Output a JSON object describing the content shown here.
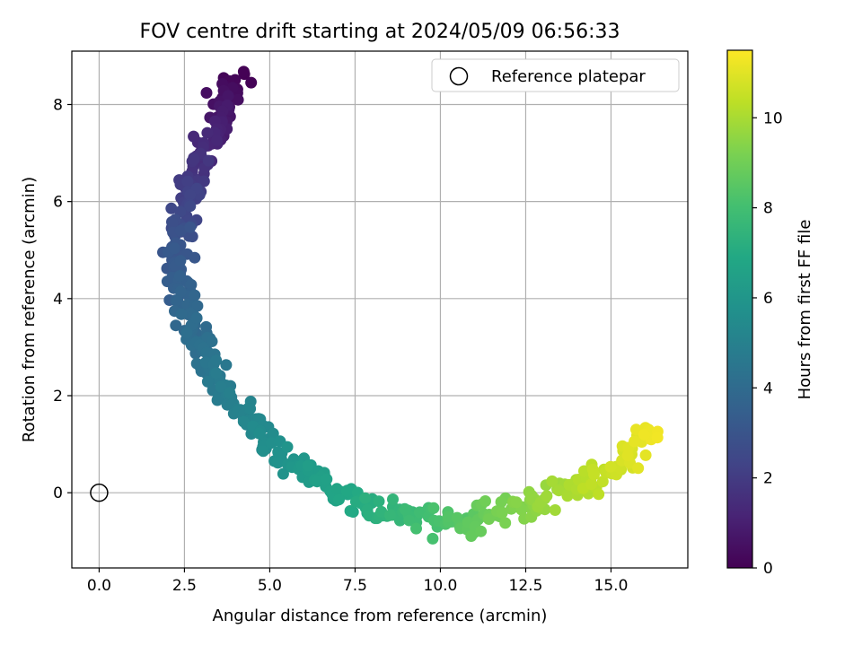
{
  "chart_data": {
    "type": "scatter",
    "title": "FOV centre drift starting at 2024/05/09 06:56:33",
    "xlabel": "Angular distance from reference (arcmin)",
    "ylabel": "Rotation from reference (arcmin)",
    "xlim": [
      -0.8,
      17.25
    ],
    "ylim": [
      -1.55,
      9.1
    ],
    "xticks": [
      0.0,
      2.5,
      5.0,
      7.5,
      10.0,
      12.5,
      15.0
    ],
    "xtick_labels": [
      "0.0",
      "2.5",
      "5.0",
      "7.5",
      "10.0",
      "12.5",
      "15.0"
    ],
    "yticks": [
      0,
      2,
      4,
      6,
      8
    ],
    "ytick_labels": [
      "0",
      "2",
      "4",
      "6",
      "8"
    ],
    "grid": true,
    "legend": {
      "placement": "top-right",
      "entries": [
        "Reference platepar"
      ]
    },
    "colorbar": {
      "label": "Hours from first FF file",
      "colormap": "viridis",
      "range": [
        0,
        11.5
      ],
      "ticks": [
        0,
        2,
        4,
        6,
        8,
        10
      ],
      "tick_labels": [
        "0",
        "2",
        "4",
        "6",
        "8",
        "10"
      ]
    },
    "reference_point": {
      "x": 0,
      "y": 0
    },
    "drift_track": {
      "x": [
        4.1,
        3.6,
        3.5,
        3.0,
        2.8,
        2.5,
        2.3,
        2.3,
        2.5,
        2.7,
        3.0,
        3.5,
        4.1,
        4.7,
        5.3,
        6.2,
        7.4,
        8.6,
        9.8,
        11.0,
        12.1,
        13.2,
        14.4,
        15.4,
        16.4
      ],
      "y": [
        8.6,
        8.05,
        7.5,
        6.95,
        6.3,
        5.7,
        5.1,
        4.5,
        3.9,
        3.4,
        2.85,
        2.3,
        1.7,
        1.25,
        0.75,
        0.3,
        -0.15,
        -0.45,
        -0.55,
        -0.55,
        -0.35,
        -0.05,
        0.25,
        0.7,
        1.3
      ],
      "hours": [
        0.0,
        0.5,
        1.0,
        1.5,
        2.0,
        2.5,
        3.0,
        3.3,
        3.7,
        4.0,
        4.3,
        4.7,
        5.0,
        5.4,
        5.8,
        6.3,
        6.9,
        7.5,
        8.1,
        8.7,
        9.3,
        9.8,
        10.3,
        10.8,
        11.3
      ]
    },
    "sample_count": 520,
    "scatter_spread": {
      "x": 0.28,
      "y": 0.24
    }
  }
}
